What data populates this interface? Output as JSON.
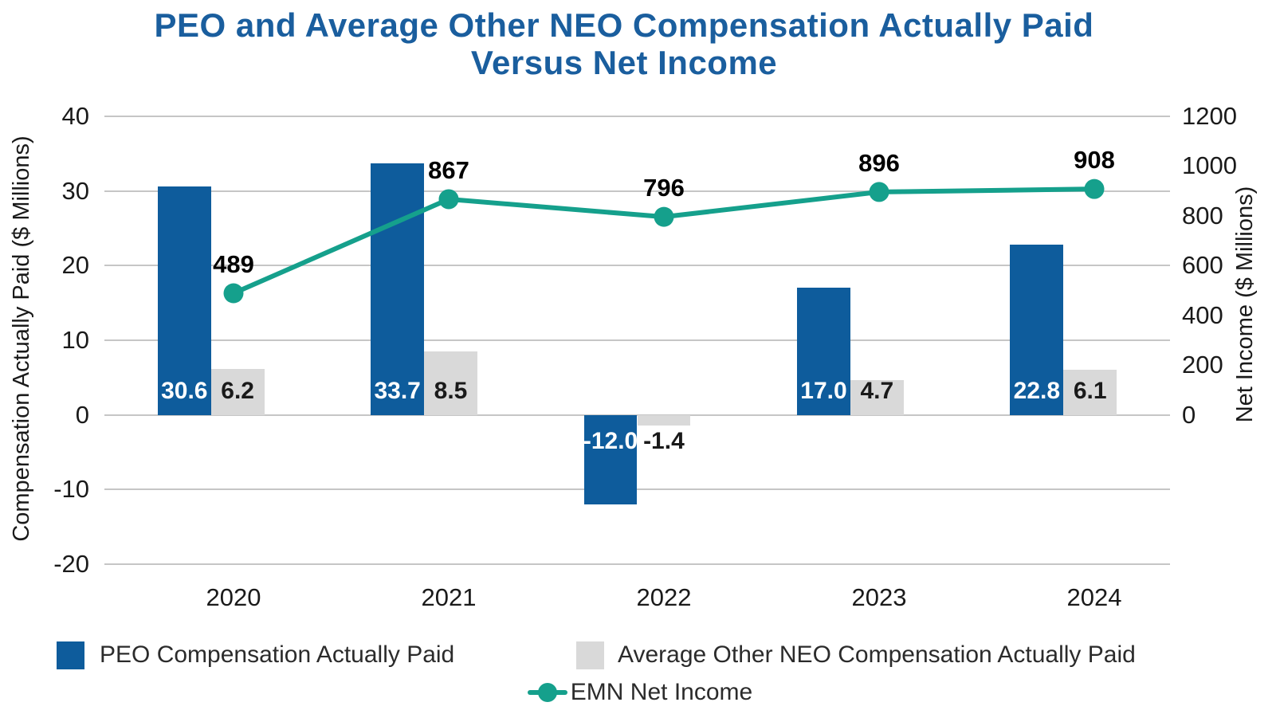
{
  "title": {
    "line1": "PEO and Average Other NEO Compensation Actually Paid",
    "line2": "Versus Net Income"
  },
  "colors": {
    "title": "#1A5E9E",
    "peo_bar": "#0E5C9C",
    "neo_bar": "#D9D9D9",
    "line": "#15A08C",
    "gridline": "#C6C6C6",
    "axis_text": "#1A1A1A",
    "legend_text": "#2B2B2B",
    "background": "#FFFFFF"
  },
  "chart_data": {
    "type": "combo-bar-line",
    "categories": [
      "2020",
      "2021",
      "2022",
      "2023",
      "2024"
    ],
    "series": [
      {
        "name": "PEO Compensation Actually Paid",
        "type": "bar",
        "axis": "left",
        "color": "#0E5C9C",
        "values": [
          30.6,
          33.7,
          -12.0,
          17.0,
          22.8
        ],
        "labels": [
          "30.6",
          "33.7",
          "-12.0",
          "17.0",
          "22.8"
        ],
        "label_color": "#FFFFFF"
      },
      {
        "name": "Average Other NEO Compensation Actually Paid",
        "type": "bar",
        "axis": "left",
        "color": "#D9D9D9",
        "values": [
          6.2,
          8.5,
          -1.4,
          4.7,
          6.1
        ],
        "labels": [
          "6.2",
          "8.5",
          "-1.4",
          "4.7",
          "6.1"
        ],
        "label_color": "#1A1A1A"
      },
      {
        "name": "EMN Net Income",
        "type": "line",
        "axis": "right",
        "color": "#15A08C",
        "values": [
          489,
          867,
          796,
          896,
          908
        ],
        "labels": [
          "489",
          "867",
          "796",
          "896",
          "908"
        ],
        "label_color": "#000000"
      }
    ],
    "axes": {
      "left": {
        "title": "Compensation Actually Paid ($ Millions)",
        "ticks": [
          40,
          30,
          20,
          10,
          0,
          -10,
          -20
        ],
        "range": [
          -20,
          40
        ]
      },
      "right": {
        "title": "Net Income ($ Millions)",
        "ticks": [
          1200,
          1000,
          800,
          600,
          400,
          200,
          0
        ],
        "range": [
          0,
          1200
        ],
        "zero_aligned_with_left_zero": true
      }
    },
    "grid": true,
    "legend": {
      "position": "bottom",
      "entries": [
        "PEO Compensation Actually Paid",
        "Average Other NEO Compensation Actually Paid",
        "EMN Net Income"
      ]
    }
  }
}
